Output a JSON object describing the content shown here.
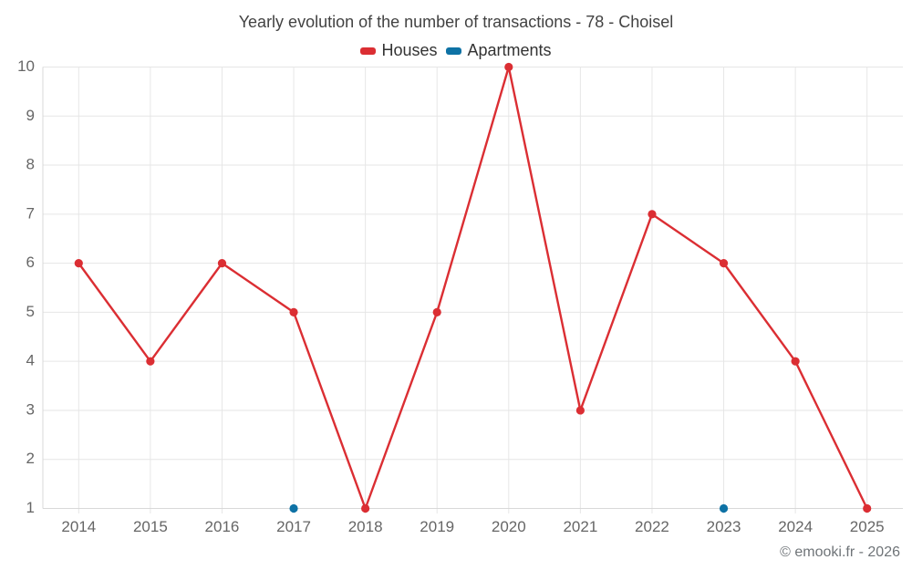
{
  "title": "Yearly evolution of the number of transactions - 78 - Choisel",
  "credits": "© emooki.fr - 2026",
  "colors": {
    "background": "#ffffff",
    "grid": "#e6e6e6",
    "axis": "#d8d8d8",
    "title_text": "#424242",
    "axis_text": "#666666",
    "legend_text": "#333333",
    "credits_text": "#6f7478"
  },
  "legend": [
    {
      "label": "Houses",
      "color": "#db2e33"
    },
    {
      "label": "Apartments",
      "color": "#0e72a5"
    }
  ],
  "chart_data": {
    "type": "line",
    "title": "Yearly evolution of the number of transactions - 78 - Choisel",
    "categories": [
      "2014",
      "2015",
      "2016",
      "2017",
      "2018",
      "2019",
      "2020",
      "2021",
      "2022",
      "2023",
      "2024",
      "2025"
    ],
    "series": [
      {
        "name": "Houses",
        "color": "#db2e33",
        "marker": "circle",
        "line": true,
        "values": [
          6,
          4,
          6,
          5,
          1,
          5,
          10,
          3,
          7,
          6,
          4,
          1
        ]
      },
      {
        "name": "Apartments",
        "color": "#0e72a5",
        "marker": "circle",
        "line": true,
        "values": [
          null,
          null,
          null,
          1,
          null,
          null,
          null,
          null,
          null,
          1,
          null,
          null
        ]
      }
    ],
    "ylim": [
      1,
      10
    ],
    "yticks": [
      1,
      2,
      3,
      4,
      5,
      6,
      7,
      8,
      9,
      10
    ],
    "grid": true,
    "legend_position": "top",
    "xlabel": "",
    "ylabel": ""
  }
}
